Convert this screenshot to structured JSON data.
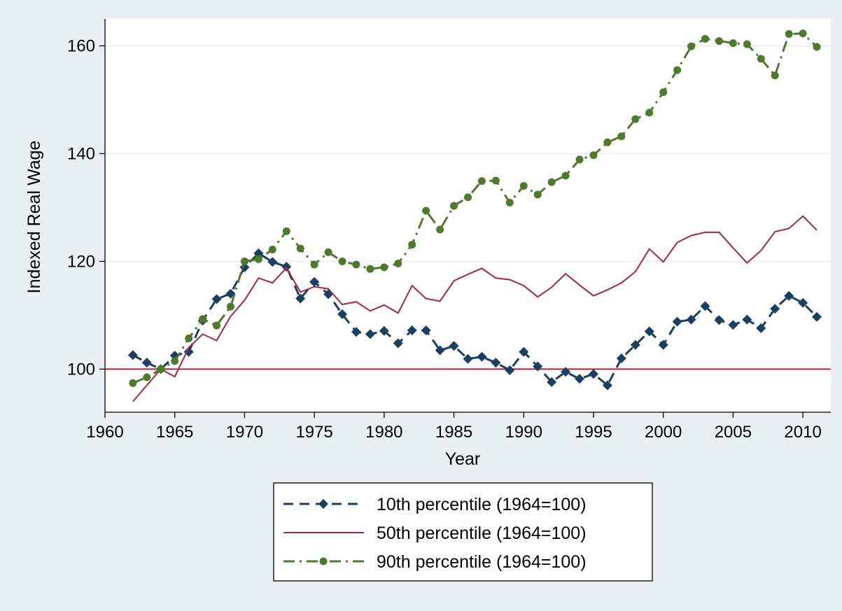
{
  "chart_data": {
    "type": "line",
    "title": "",
    "xlabel": "Year",
    "ylabel": "Indexed Real Wage",
    "xlim": [
      1960,
      2012
    ],
    "ylim": [
      92,
      165
    ],
    "x_ticks": [
      1960,
      1965,
      1970,
      1975,
      1980,
      1985,
      1990,
      1995,
      2000,
      2005,
      2010
    ],
    "y_ticks": [
      100,
      120,
      140,
      160
    ],
    "grid": "horizontal",
    "legend_position": "bottom",
    "reference_line": {
      "y": 100,
      "color": "#b3243a"
    },
    "x": [
      1962,
      1963,
      1964,
      1965,
      1966,
      1967,
      1968,
      1969,
      1970,
      1971,
      1972,
      1973,
      1974,
      1975,
      1976,
      1977,
      1978,
      1979,
      1980,
      1981,
      1982,
      1983,
      1984,
      1985,
      1986,
      1987,
      1988,
      1989,
      1990,
      1991,
      1992,
      1993,
      1994,
      1995,
      1996,
      1997,
      1998,
      1999,
      2000,
      2001,
      2002,
      2003,
      2004,
      2005,
      2006,
      2007,
      2008,
      2009,
      2010,
      2011
    ],
    "series": [
      {
        "name": "10th percentile (1964=100)",
        "color": "#1b3f63",
        "style": "dashed",
        "marker": "diamond",
        "values": [
          102.6,
          101.2,
          100.0,
          102.5,
          103.2,
          109.0,
          113.0,
          114.0,
          118.9,
          121.5,
          119.9,
          119.0,
          113.1,
          116.2,
          113.9,
          110.2,
          106.9,
          106.5,
          107.1,
          104.8,
          107.2,
          107.2,
          103.5,
          104.3,
          101.9,
          102.3,
          101.2,
          99.8,
          103.2,
          100.5,
          97.6,
          99.5,
          98.2,
          99.1,
          97.0,
          102.0,
          104.5,
          107.0,
          104.5,
          108.8,
          109.2,
          111.7,
          109.1,
          108.2,
          109.2,
          107.6,
          111.2,
          113.6,
          112.3,
          109.7
        ]
      },
      {
        "name": "50th percentile (1964=100)",
        "color": "#a3283f",
        "style": "solid",
        "marker": "none",
        "values": [
          94.0,
          97.0,
          100.0,
          98.6,
          104.0,
          106.5,
          105.3,
          109.8,
          112.8,
          116.9,
          116.0,
          118.8,
          114.3,
          115.3,
          114.9,
          112.0,
          112.5,
          110.8,
          111.9,
          110.4,
          115.5,
          113.1,
          112.6,
          116.4,
          117.6,
          118.7,
          116.9,
          116.6,
          115.5,
          113.4,
          115.2,
          117.7,
          115.6,
          113.6,
          114.7,
          116.0,
          118.1,
          122.3,
          119.9,
          123.5,
          124.8,
          125.4,
          125.4,
          122.5,
          119.7,
          122.0,
          125.5,
          126.1,
          128.4,
          125.8
        ]
      },
      {
        "name": "90th percentile (1964=100)",
        "color": "#4e7a2e",
        "style": "dash-dot",
        "marker": "circle",
        "values": [
          97.4,
          98.5,
          100.0,
          101.5,
          105.7,
          109.3,
          108.1,
          111.6,
          120.0,
          120.4,
          122.2,
          125.6,
          122.4,
          119.4,
          121.7,
          120.0,
          119.4,
          118.6,
          118.9,
          119.6,
          123.1,
          129.4,
          125.9,
          130.3,
          131.9,
          134.9,
          135.0,
          130.9,
          134.0,
          132.4,
          134.7,
          135.9,
          138.9,
          139.7,
          142.1,
          143.2,
          146.4,
          147.6,
          151.4,
          155.5,
          159.9,
          161.3,
          160.9,
          160.5,
          160.3,
          157.6,
          154.5,
          162.2,
          162.3,
          159.8
        ]
      }
    ]
  }
}
